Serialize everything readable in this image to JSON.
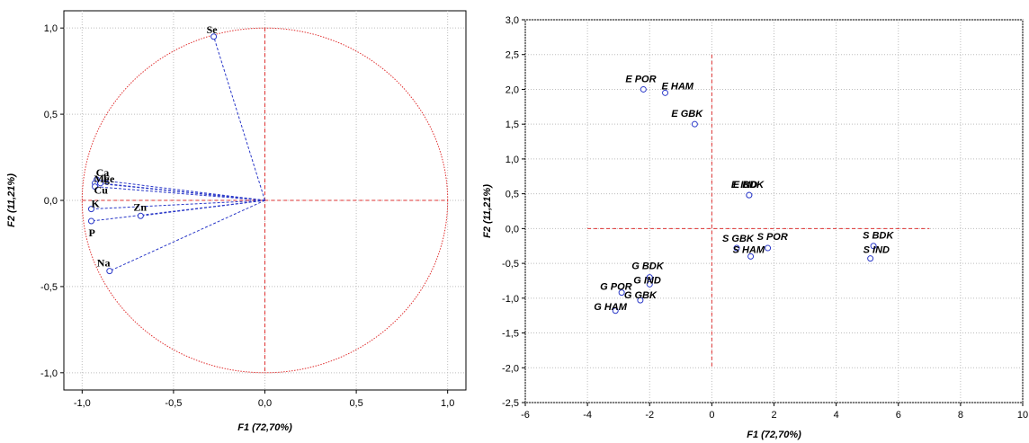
{
  "chart_data": [
    {
      "type": "scatter",
      "subtype": "correlation-circle",
      "xlabel": "F1 (72,70%)",
      "ylabel": "F2 (11,21%)",
      "xlim": [
        -1.1,
        1.1
      ],
      "ylim": [
        -1.1,
        1.1
      ],
      "xticks": [
        "-1,0",
        "-0,5",
        "0,0",
        "0,5",
        "1,0"
      ],
      "yticks": [
        "1,0",
        "0,5",
        "0,0",
        "-0,5",
        "-1,0"
      ],
      "grid": true,
      "points": [
        {
          "label": "Se",
          "x": -0.28,
          "y": 0.95
        },
        {
          "label": "Ca",
          "x": -0.92,
          "y": 0.12
        },
        {
          "label": "Mg",
          "x": -0.93,
          "y": 0.1
        },
        {
          "label": "Fe",
          "x": -0.9,
          "y": 0.1
        },
        {
          "label": "Cu",
          "x": -0.93,
          "y": 0.08
        },
        {
          "label": "K",
          "x": -0.95,
          "y": -0.05
        },
        {
          "label": "P",
          "x": -0.95,
          "y": -0.12
        },
        {
          "label": "Zn",
          "x": -0.68,
          "y": -0.09
        },
        {
          "label": "Na",
          "x": -0.85,
          "y": -0.41
        }
      ]
    },
    {
      "type": "scatter",
      "xlabel": "F1 (72,70%)",
      "ylabel": "F2 (11,21%)",
      "xlim": [
        -6,
        10
      ],
      "ylim": [
        -2.5,
        3.0
      ],
      "xticks": [
        "-6",
        "-4",
        "-2",
        "0",
        "2",
        "4",
        "6",
        "8",
        "10"
      ],
      "yticks": [
        "3,0",
        "2,5",
        "2,0",
        "1,5",
        "1,0",
        "0,5",
        "0,0",
        "-0,5",
        "-1,0",
        "-1,5",
        "-2,0",
        "-2,5"
      ],
      "grid": true,
      "points": [
        {
          "label": "E POR",
          "x": -2.2,
          "y": 2.0
        },
        {
          "label": "E HAM",
          "x": -1.5,
          "y": 1.95
        },
        {
          "label": "E GBK",
          "x": -0.55,
          "y": 1.5
        },
        {
          "label": "E IND",
          "x": 1.2,
          "y": 0.48
        },
        {
          "label": "E BDK",
          "x": 1.2,
          "y": 0.48
        },
        {
          "label": "S GBK",
          "x": 0.8,
          "y": -0.28
        },
        {
          "label": "S POR",
          "x": 1.8,
          "y": -0.28
        },
        {
          "label": "S HAM",
          "x": 1.25,
          "y": -0.4
        },
        {
          "label": "S BDK",
          "x": 5.2,
          "y": -0.25
        },
        {
          "label": "S IND",
          "x": 5.1,
          "y": -0.43
        },
        {
          "label": "G BDK",
          "x": -2.0,
          "y": -0.7
        },
        {
          "label": "G IND",
          "x": -2.0,
          "y": -0.8
        },
        {
          "label": "G POR",
          "x": -2.9,
          "y": -0.92
        },
        {
          "label": "G GBK",
          "x": -2.3,
          "y": -1.03
        },
        {
          "label": "G HAM",
          "x": -3.1,
          "y": -1.18
        }
      ]
    }
  ]
}
